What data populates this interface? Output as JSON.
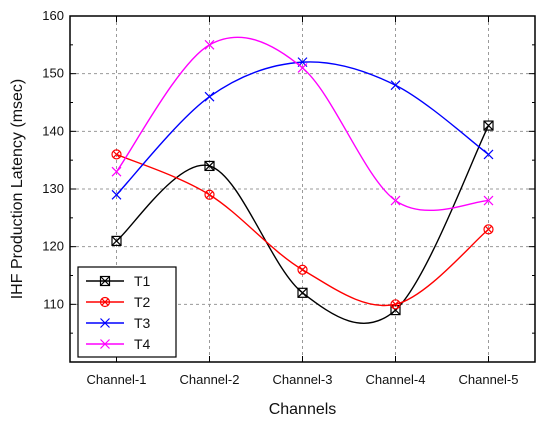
{
  "chart_data": {
    "type": "line",
    "title": "",
    "xlabel": "Channels",
    "ylabel": "IHF Production Latency (msec)",
    "categories": [
      "Channel-1",
      "Channel-2",
      "Channel-3",
      "Channel-4",
      "Channel-5"
    ],
    "ylim": [
      100,
      160
    ],
    "yticks": [
      110,
      120,
      130,
      140,
      150,
      160
    ],
    "grid": true,
    "legend_position": "bottom-left",
    "series": [
      {
        "name": "T1",
        "values": [
          121,
          134,
          112,
          109,
          141
        ],
        "color": "#000000",
        "marker": "square-x"
      },
      {
        "name": "T2",
        "values": [
          136,
          129,
          116,
          110,
          123
        ],
        "color": "#ff0000",
        "marker": "circle-x"
      },
      {
        "name": "T3",
        "values": [
          129,
          146,
          152,
          148,
          136
        ],
        "color": "#0000ff",
        "marker": "x"
      },
      {
        "name": "T4",
        "values": [
          133,
          155,
          151,
          128,
          128
        ],
        "color": "#ff00ff",
        "marker": "x"
      }
    ]
  }
}
